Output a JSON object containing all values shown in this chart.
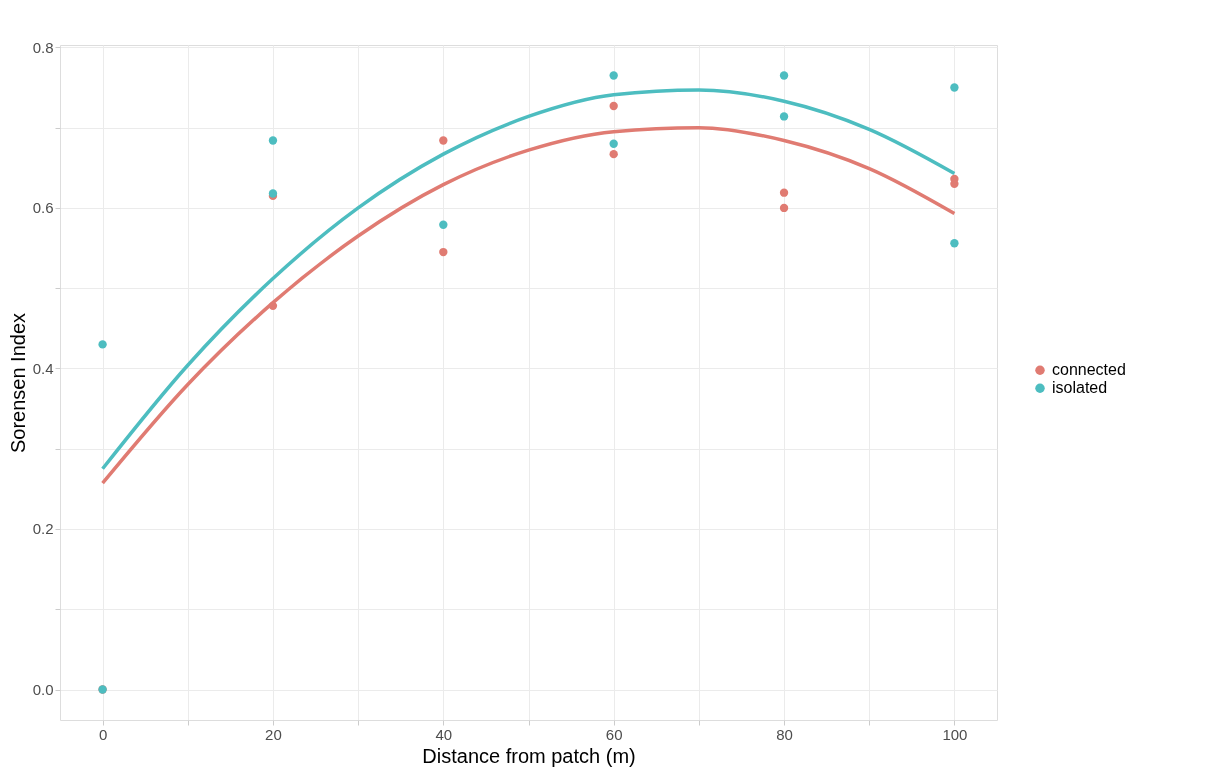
{
  "chart_data": {
    "type": "scatter",
    "xlabel": "Distance from patch (m)",
    "ylabel": "Sorensen Index",
    "xlim": [
      -5,
      105
    ],
    "ylim": [
      -0.038,
      0.803
    ],
    "xticks": [
      0,
      {
        "value": 10,
        "label": null
      },
      20,
      {
        "value": 30,
        "label": null
      },
      40,
      {
        "value": 50,
        "label": null
      },
      60,
      {
        "value": 70,
        "label": null
      },
      80,
      {
        "value": 90,
        "label": null
      },
      100
    ],
    "yticks": [
      {
        "value": 0,
        "label": "0.0"
      },
      {
        "value": 0.1,
        "label": null
      },
      {
        "value": 0.2,
        "label": "0.2"
      },
      {
        "value": 0.3,
        "label": null
      },
      {
        "value": 0.4,
        "label": "0.4"
      },
      {
        "value": 0.5,
        "label": null
      },
      {
        "value": 0.6,
        "label": "0.6"
      },
      {
        "value": 0.7,
        "label": null
      },
      {
        "value": 0.8,
        "label": "0.8"
      }
    ],
    "grid": true,
    "legend": "right",
    "series": [
      {
        "name": "connected",
        "marker": "circle",
        "color": "#e07b72",
        "x": [
          0,
          20,
          20,
          40,
          40,
          60,
          60,
          80,
          80,
          100,
          100
        ],
        "values": [
          0,
          0.615,
          0.478,
          0.684,
          0.545,
          0.727,
          0.667,
          0.619,
          0.6,
          0.636,
          0.63
        ]
      },
      {
        "name": "isolated",
        "marker": "circle",
        "color": "#4dbdc0",
        "x": [
          0,
          0,
          20,
          20,
          40,
          60,
          60,
          80,
          80,
          100,
          100
        ],
        "values": [
          0,
          0.43,
          0.684,
          0.618,
          0.579,
          0.765,
          0.68,
          0.765,
          0.714,
          0.75,
          0.556
        ]
      },
      {
        "type": "line",
        "line_style": "solid",
        "color": "#e07b72",
        "x": [
          0,
          10,
          20,
          30,
          40,
          50,
          60,
          70,
          80,
          90,
          100
        ],
        "values": [
          0.257,
          0.38,
          0.482,
          0.565,
          0.629,
          0.672,
          0.695,
          0.7,
          0.684,
          0.649,
          0.593
        ]
      },
      {
        "type": "line",
        "line_style": "solid",
        "color": "#4dbdc0",
        "x": [
          0,
          10,
          20,
          30,
          40,
          50,
          60,
          70,
          80,
          90,
          100
        ],
        "values": [
          0.275,
          0.404,
          0.512,
          0.6,
          0.667,
          0.714,
          0.741,
          0.747,
          0.733,
          0.698,
          0.643
        ]
      }
    ]
  }
}
